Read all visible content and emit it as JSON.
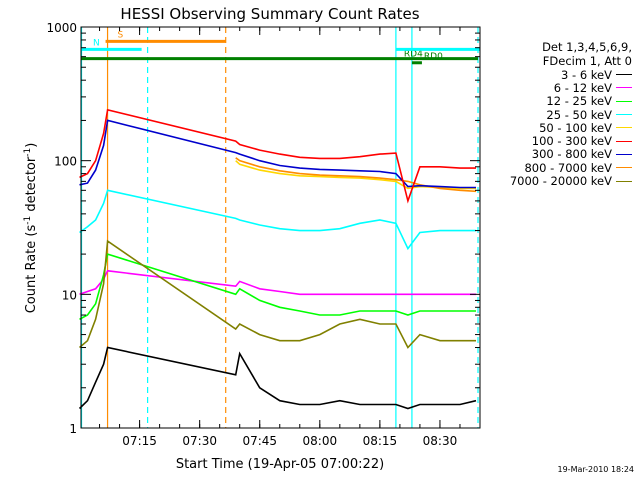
{
  "chart_data": {
    "type": "line",
    "title": "HESSI Observing Summary Count Rates",
    "xlabel": "Start Time (19-Apr-05 07:00:22)",
    "ylabel": "Count Rate (s⁻¹ detector⁻¹)",
    "y_scale": "log",
    "ylim": [
      1,
      1000
    ],
    "xlim": [
      "07:00:22",
      "08:40:00"
    ],
    "x_ticks": [
      "07:15",
      "07:30",
      "07:45",
      "08:00",
      "08:15",
      "08:30"
    ],
    "y_ticks": [
      "1",
      "10",
      "100",
      "1000"
    ],
    "grid": false,
    "legend_header": [
      "Det 1,3,4,5,6,9,",
      "FDecim 1, Att 0"
    ],
    "legend_position": "right",
    "series": [
      {
        "name": "3 - 6 keV",
        "color": "#000000",
        "x": [
          "07:00",
          "07:02",
          "07:04",
          "07:06",
          "07:07",
          "07:39",
          "07:40",
          "07:45",
          "07:50",
          "07:55",
          "08:00",
          "08:05",
          "08:10",
          "08:15",
          "08:19",
          "08:22",
          "08:25",
          "08:30",
          "08:35",
          "08:39"
        ],
        "y": [
          1.4,
          1.6,
          2.2,
          3.0,
          4.0,
          2.5,
          3.6,
          2.0,
          1.6,
          1.5,
          1.5,
          1.6,
          1.5,
          1.5,
          1.5,
          1.4,
          1.5,
          1.5,
          1.5,
          1.6
        ]
      },
      {
        "name": "6 - 12 keV",
        "color": "#ff00ff",
        "x": [
          "07:00",
          "07:02",
          "07:04",
          "07:06",
          "07:07",
          "07:39",
          "07:40",
          "07:45",
          "07:50",
          "07:55",
          "08:00",
          "08:05",
          "08:10",
          "08:15",
          "08:19",
          "08:22",
          "08:25",
          "08:30",
          "08:35",
          "08:39"
        ],
        "y": [
          10,
          10.5,
          11,
          13,
          15,
          11.5,
          12.5,
          11,
          10.5,
          10,
          10,
          10,
          10,
          10,
          10,
          10,
          10,
          10,
          10,
          10
        ]
      },
      {
        "name": "12 - 25 keV",
        "color": "#00ff00",
        "x": [
          "07:00",
          "07:02",
          "07:04",
          "07:06",
          "07:07",
          "07:39",
          "07:40",
          "07:45",
          "07:50",
          "07:55",
          "08:00",
          "08:05",
          "08:10",
          "08:15",
          "08:19",
          "08:22",
          "08:25",
          "08:30",
          "08:35",
          "08:39"
        ],
        "y": [
          6.5,
          7,
          8.5,
          14,
          20,
          10,
          11,
          9,
          8,
          7.5,
          7,
          7,
          7.5,
          7.5,
          7.5,
          7,
          7.5,
          7.5,
          7.5,
          7.5
        ]
      },
      {
        "name": "25 - 50 keV",
        "color": "#00ffff",
        "x": [
          "07:00",
          "07:02",
          "07:04",
          "07:06",
          "07:07",
          "07:39",
          "07:40",
          "07:45",
          "07:50",
          "07:55",
          "08:00",
          "08:05",
          "08:10",
          "08:15",
          "08:19",
          "08:22",
          "08:25",
          "08:30",
          "08:35",
          "08:39"
        ],
        "y": [
          29,
          32,
          36,
          48,
          60,
          37,
          36,
          33,
          31,
          30,
          30,
          31,
          34,
          36,
          34,
          22,
          29,
          30,
          30,
          30
        ]
      },
      {
        "name": "50 - 100 keV",
        "color": "#ffd700",
        "x": [
          "07:39",
          "07:40",
          "07:45",
          "07:50",
          "07:55",
          "08:00",
          "08:05",
          "08:10",
          "08:15",
          "08:19",
          "08:22",
          "08:25",
          "08:30",
          "08:35",
          "08:39"
        ],
        "y": [
          100,
          94,
          85,
          80,
          77,
          76,
          75,
          74,
          72,
          70,
          62,
          64,
          63,
          62,
          62
        ]
      },
      {
        "name": "100 - 300 keV",
        "color": "#ff0000",
        "x": [
          "07:00",
          "07:02",
          "07:04",
          "07:06",
          "07:07",
          "07:39",
          "07:40",
          "07:45",
          "07:50",
          "07:55",
          "08:00",
          "08:05",
          "08:10",
          "08:15",
          "08:19",
          "08:22",
          "08:25",
          "08:30",
          "08:35",
          "08:39"
        ],
        "y": [
          75,
          80,
          100,
          160,
          240,
          140,
          132,
          120,
          112,
          106,
          104,
          104,
          107,
          112,
          114,
          50,
          90,
          90,
          88,
          88
        ]
      },
      {
        "name": "300 - 800 keV",
        "color": "#0000cc",
        "x": [
          "07:00",
          "07:02",
          "07:04",
          "07:06",
          "07:07",
          "07:39",
          "07:40",
          "07:45",
          "07:50",
          "07:55",
          "08:00",
          "08:05",
          "08:10",
          "08:15",
          "08:19",
          "08:22",
          "08:25",
          "08:30",
          "08:35",
          "08:39"
        ],
        "y": [
          66,
          68,
          85,
          130,
          200,
          115,
          112,
          100,
          92,
          88,
          86,
          85,
          84,
          83,
          80,
          64,
          65,
          64,
          63,
          63
        ]
      },
      {
        "name": "800 - 7000 keV",
        "color": "#ff8c00",
        "x": [
          "07:39",
          "07:40",
          "07:45",
          "07:50",
          "07:55",
          "08:00",
          "08:05",
          "08:10",
          "08:15",
          "08:19",
          "08:22",
          "08:25",
          "08:30",
          "08:35",
          "08:39"
        ],
        "y": [
          105,
          100,
          90,
          84,
          80,
          78,
          77,
          76,
          74,
          72,
          70,
          66,
          62,
          60,
          59
        ]
      },
      {
        "name": "7000 - 20000 keV",
        "color": "#808000",
        "x": [
          "07:00",
          "07:02",
          "07:04",
          "07:06",
          "07:07",
          "07:39",
          "07:40",
          "07:45",
          "07:50",
          "07:55",
          "08:00",
          "08:05",
          "08:10",
          "08:15",
          "08:19",
          "08:22",
          "08:25",
          "08:30",
          "08:35",
          "08:39"
        ],
        "y": [
          4,
          4.5,
          6.5,
          12,
          25,
          5.5,
          6,
          5,
          4.5,
          4.5,
          5,
          6,
          6.5,
          6,
          6,
          4,
          5,
          4.5,
          4.5,
          4.5
        ]
      }
    ],
    "annotations": [
      {
        "label": "S",
        "color": "#ff8c00",
        "x_start": "07:06:30",
        "x_end": "07:36:30",
        "y": 780
      },
      {
        "label": "N",
        "color": "#00ffff",
        "x_start": "07:00:22",
        "x_end": "07:15:30",
        "y": 680
      },
      {
        "label": "",
        "color": "#008000",
        "x_start": "07:00:22",
        "x_end": "08:39:30",
        "y": 580
      },
      {
        "label": "RD4",
        "color": "#008000",
        "x_start": "08:18:00",
        "x_end": "08:18:00",
        "y": 560
      },
      {
        "label": "RD0",
        "color": "#008000",
        "x_start": "08:23:00",
        "x_end": "08:25:30",
        "y": 540
      },
      {
        "label": "",
        "color": "#00ffff",
        "x_start": "08:19:00",
        "x_end": "08:40:00",
        "y": 680
      }
    ],
    "vlines": [
      {
        "x": "07:00:30",
        "color": "#00ffff",
        "style": "solid"
      },
      {
        "x": "07:07:00",
        "color": "#ff8c00",
        "style": "solid"
      },
      {
        "x": "07:17:00",
        "color": "#00ffff",
        "style": "dashed"
      },
      {
        "x": "07:36:30",
        "color": "#ff8c00",
        "style": "dashed"
      },
      {
        "x": "08:19:00",
        "color": "#00ffff",
        "style": "solid"
      },
      {
        "x": "08:23:00",
        "color": "#00ffff",
        "style": "solid"
      },
      {
        "x": "08:39:30",
        "color": "#00ffff",
        "style": "dashed"
      }
    ]
  },
  "footer": "19-Mar-2010 18:24"
}
